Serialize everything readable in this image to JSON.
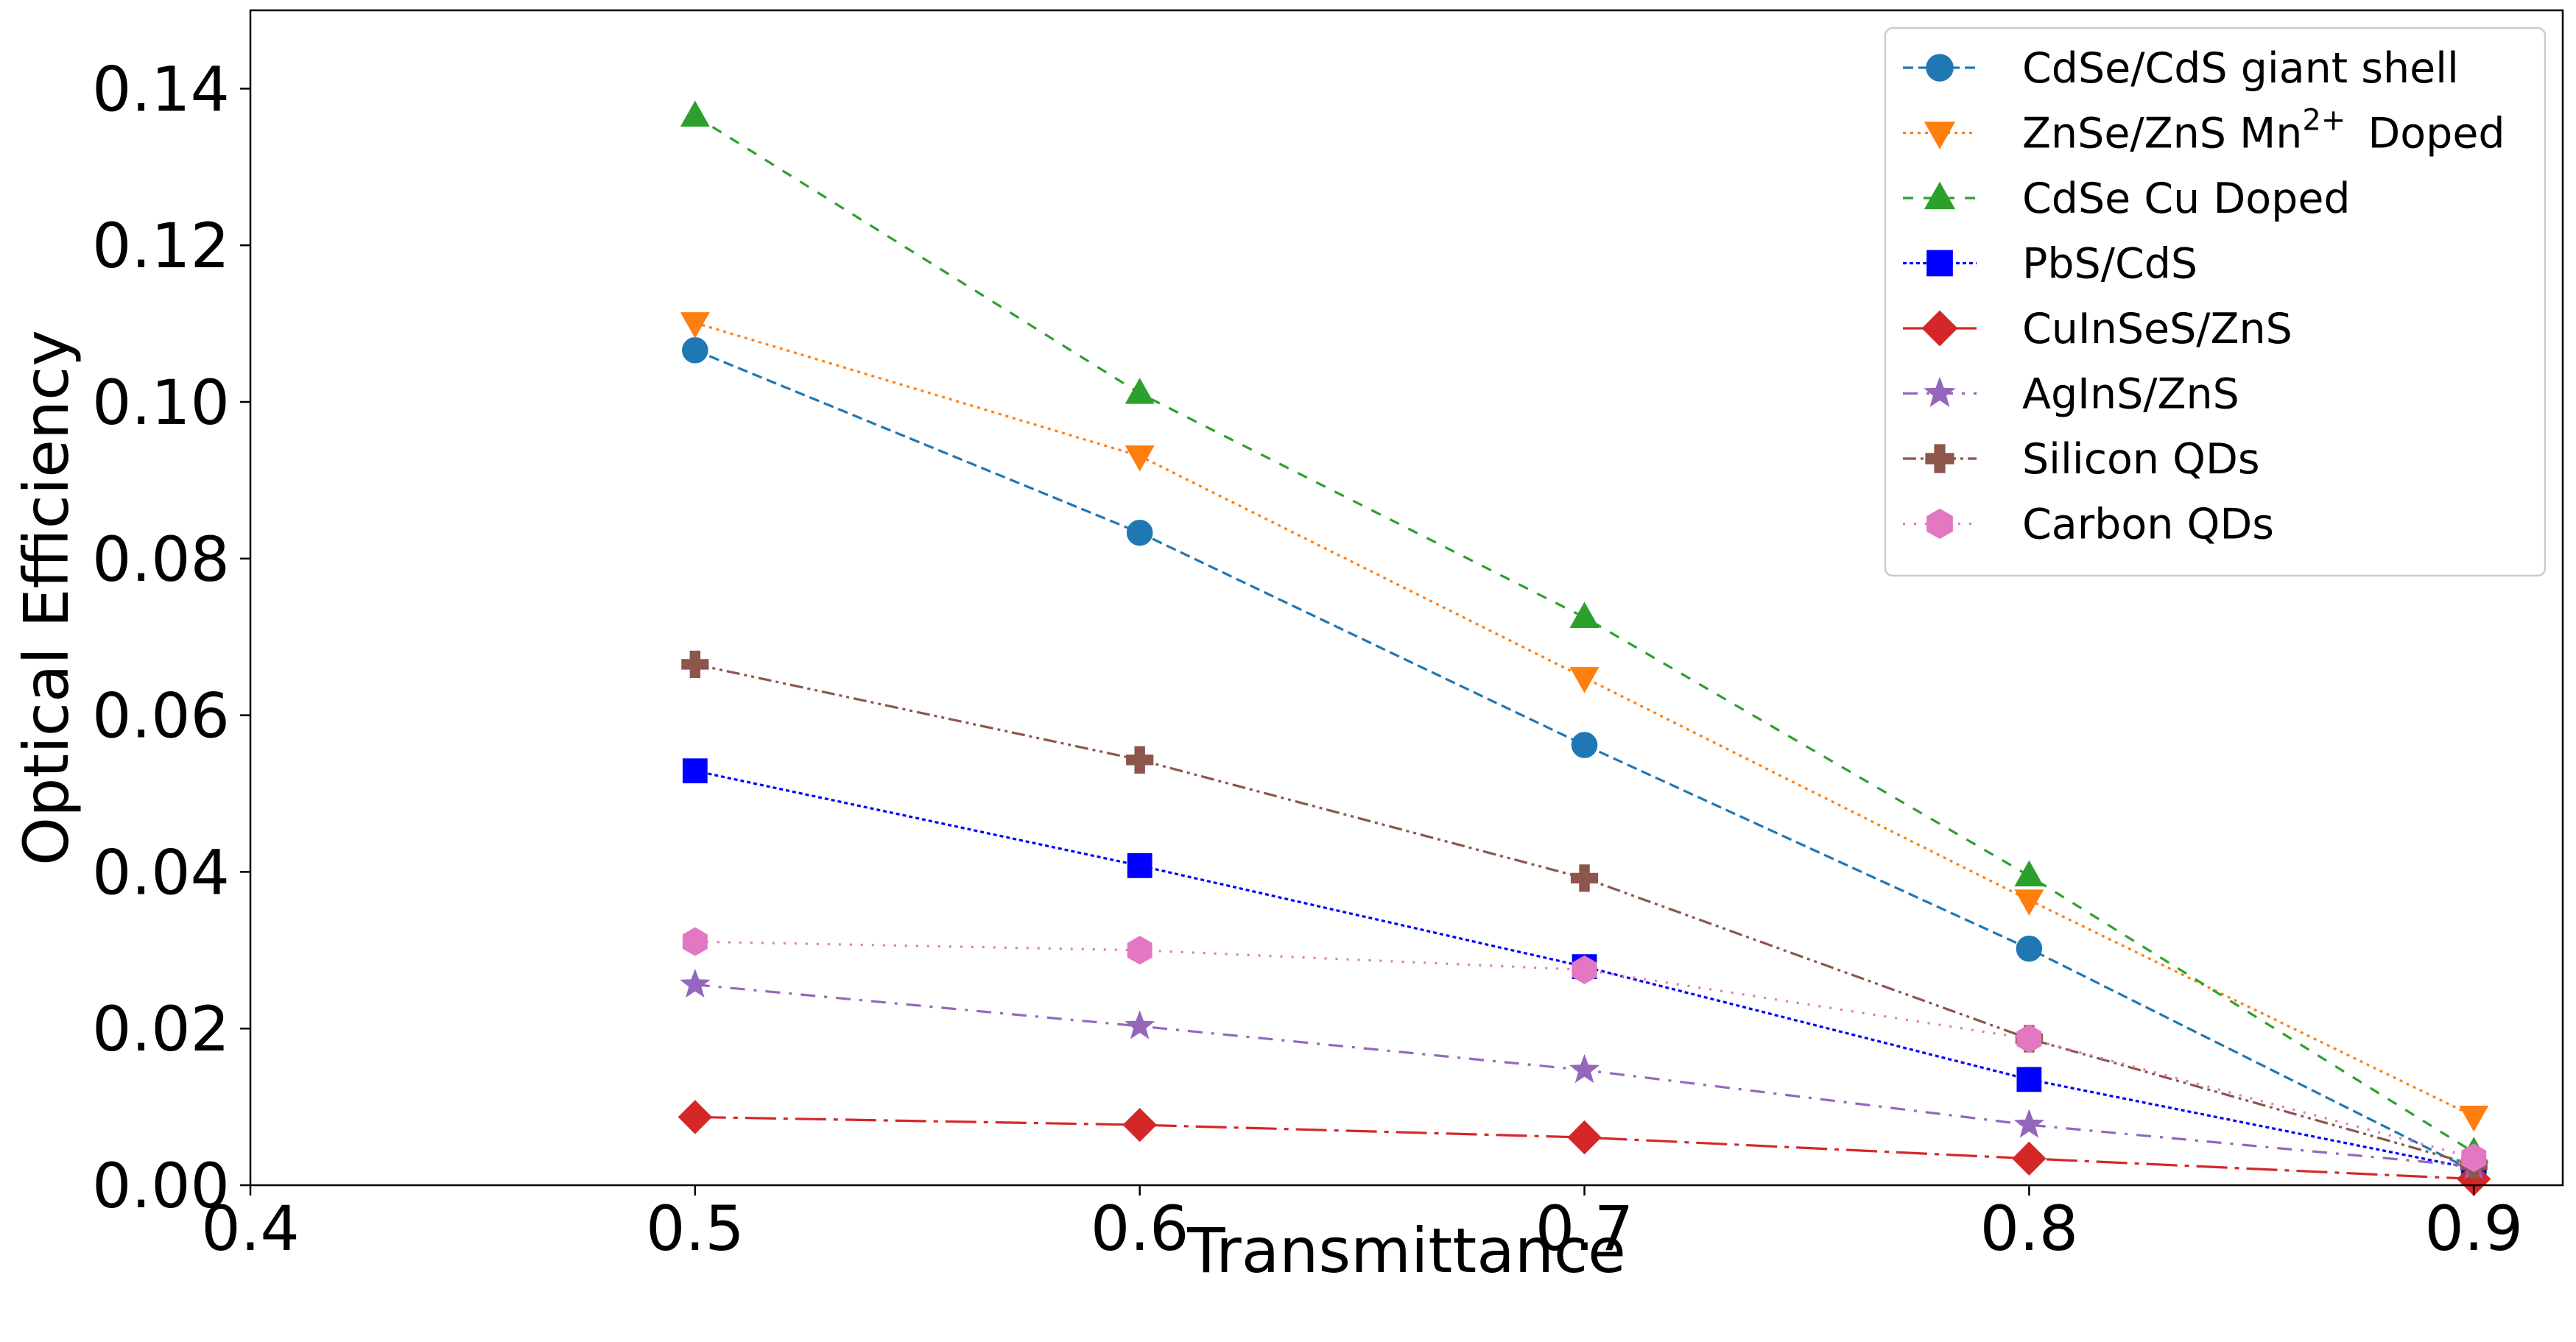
{
  "chart_data": {
    "type": "line",
    "title": "",
    "xlabel": "Transmittance",
    "ylabel": "Optical Efficiency",
    "xlim": [
      0.4,
      0.92
    ],
    "ylim": [
      0.0,
      0.15
    ],
    "xticks": [
      0.4,
      0.5,
      0.6,
      0.7,
      0.8,
      0.9
    ],
    "xtick_labels": [
      "0.4",
      "0.5",
      "0.6",
      "0.7",
      "0.8",
      "0.9"
    ],
    "yticks": [
      0.0,
      0.02,
      0.04,
      0.06,
      0.08,
      0.1,
      0.12,
      0.14
    ],
    "ytick_labels": [
      "0.00",
      "0.02",
      "0.04",
      "0.06",
      "0.08",
      "0.10",
      "0.12",
      "0.14"
    ],
    "grid": false,
    "legend_position": "top-right",
    "x": [
      0.5,
      0.6,
      0.7,
      0.8,
      0.9
    ],
    "series": [
      {
        "name": "CdSe/CdS giant shell",
        "legend_prefix": "CdSe/CdS giant shell",
        "legend_sup": "",
        "legend_suffix": "",
        "color": "#1f77b4",
        "marker": "circle",
        "dash": "dashed",
        "values": [
          0.1066,
          0.0833,
          0.0562,
          0.0302,
          0.0018
        ]
      },
      {
        "name": "ZnSe/ZnS Mn2+ Doped",
        "legend_prefix": "ZnSe/ZnS Mn",
        "legend_sup": "2+",
        "legend_suffix": "Doped",
        "color": "#ff7f0e",
        "marker": "triangle-down",
        "dash": "dotted",
        "values": [
          0.1101,
          0.0931,
          0.0648,
          0.0364,
          0.0088
        ]
      },
      {
        "name": "CdSe Cu Doped",
        "legend_prefix": "CdSe Cu Doped",
        "legend_sup": "",
        "legend_suffix": "",
        "color": "#2ca02c",
        "marker": "triangle-up",
        "dash": "dashed-loose",
        "values": [
          0.1365,
          0.1011,
          0.0725,
          0.0395,
          0.0042
        ]
      },
      {
        "name": "PbS/CdS",
        "legend_prefix": "PbS/CdS",
        "legend_sup": "",
        "legend_suffix": "",
        "color": "#0000ff",
        "marker": "square",
        "dash": "dotted-dense",
        "values": [
          0.0529,
          0.0408,
          0.0279,
          0.0135,
          0.0021
        ]
      },
      {
        "name": "CuInSeS/ZnS",
        "legend_prefix": "CuInSeS/ZnS",
        "legend_sup": "",
        "legend_suffix": "",
        "color": "#d62728",
        "marker": "diamond",
        "dash": "long-dash-dot",
        "values": [
          0.0087,
          0.0077,
          0.0061,
          0.0034,
          0.0008
        ]
      },
      {
        "name": "AgInS/ZnS",
        "legend_prefix": "AgInS/ZnS",
        "legend_sup": "",
        "legend_suffix": "",
        "color": "#9467bd",
        "marker": "star",
        "dash": "dash-dot",
        "values": [
          0.0256,
          0.0203,
          0.0147,
          0.0077,
          0.0024
        ]
      },
      {
        "name": "Silicon QDs",
        "legend_prefix": "Silicon QDs",
        "legend_sup": "",
        "legend_suffix": "",
        "color": "#8c564b",
        "marker": "plus",
        "dash": "dash-dot-dot",
        "values": [
          0.0665,
          0.0543,
          0.0392,
          0.0187,
          0.0026
        ]
      },
      {
        "name": "Carbon QDs",
        "legend_prefix": "Carbon QDs",
        "legend_sup": "",
        "legend_suffix": "",
        "color": "#e377c2",
        "marker": "hexagon",
        "dash": "dotted-sparse",
        "values": [
          0.0311,
          0.03,
          0.0275,
          0.0187,
          0.0035
        ]
      }
    ]
  }
}
